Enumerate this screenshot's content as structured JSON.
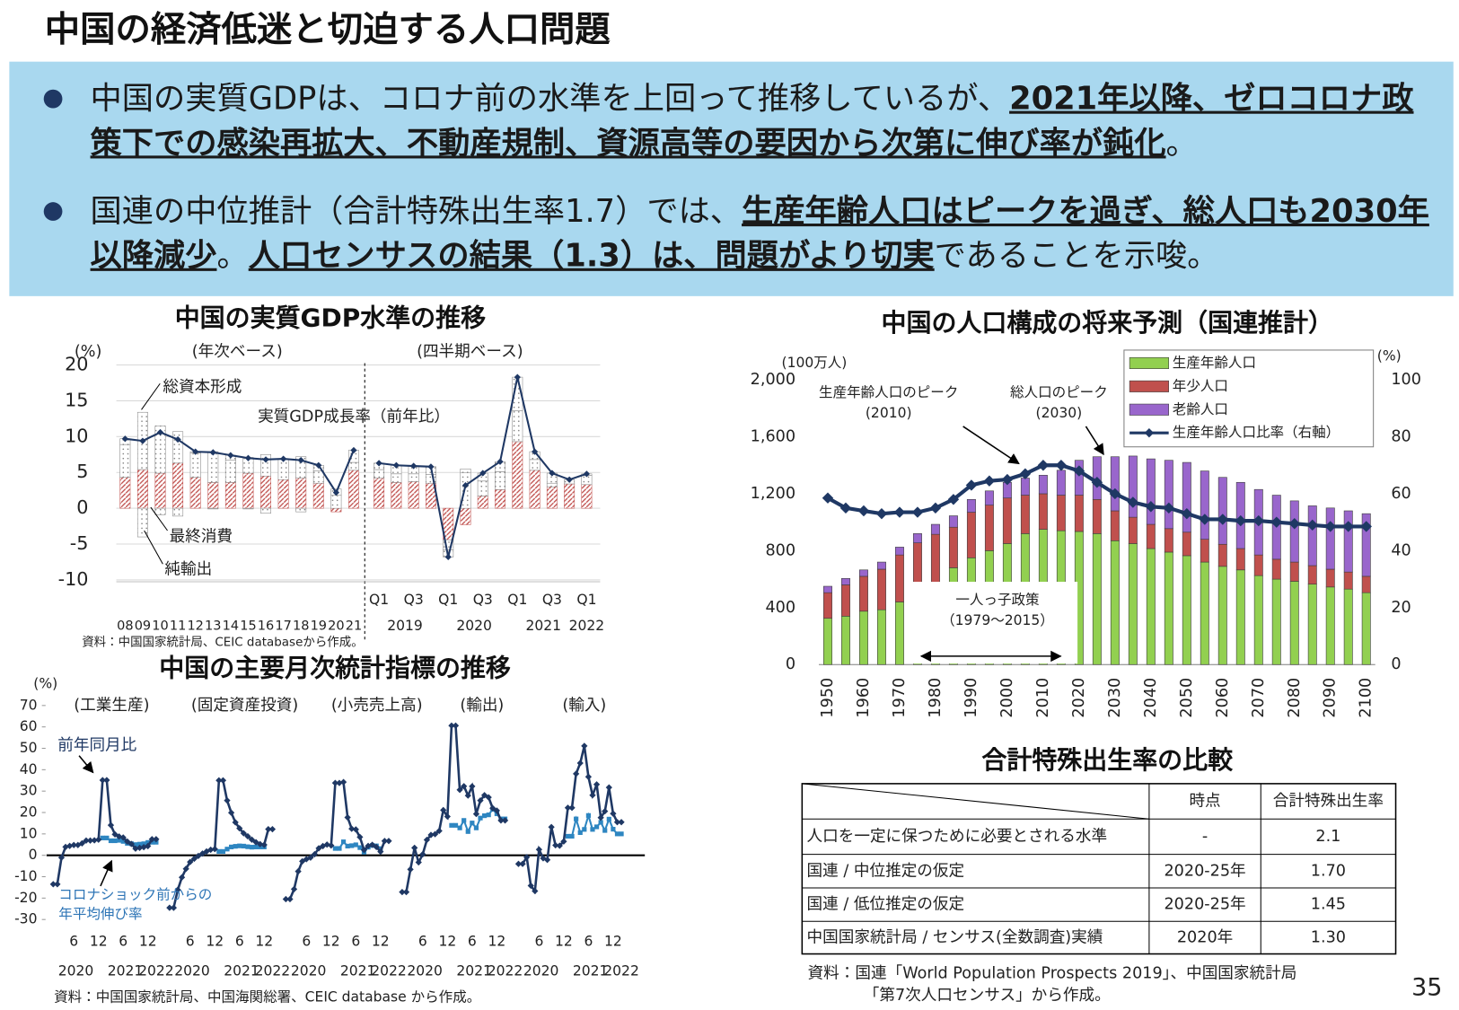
{
  "title": "中国の経済低迷と切迫する人口問題",
  "bullets": [
    {
      "segments": [
        {
          "text": "中国の実質GDPは、コロナ前の水準を上回って推移しているが、",
          "bold": false
        },
        {
          "text": "2021年以降、ゼロコロナ政策下での感染再拡大、不動産規制、資源高等の要因から次第に伸び率が鈍化",
          "bold": true
        },
        {
          "text": "。",
          "bold": false
        }
      ]
    },
    {
      "segments": [
        {
          "text": "国連の中位推計（合計特殊出生率1.7）では、",
          "bold": false
        },
        {
          "text": "生産年齢人口はピークを過ぎ、総人口も2030年以降減少",
          "bold": true
        },
        {
          "text": "。",
          "bold": false
        },
        {
          "text": "人口センサスの結果（1.3）は、問題がより切実",
          "bold": true
        },
        {
          "text": "であることを示唆。",
          "bold": false
        }
      ]
    }
  ],
  "chart_data": [
    {
      "type": "bar",
      "stacked": true,
      "title": "中国の実質GDP水準の推移",
      "y_unit": "(%)",
      "section_labels": [
        "(年次ベース)",
        "(四半期ベース)"
      ],
      "categories": [
        "08",
        "09",
        "10",
        "11",
        "12",
        "13",
        "14",
        "15",
        "16",
        "17",
        "18",
        "19",
        "20",
        "21",
        "Q1",
        null,
        "Q3",
        null,
        "Q1",
        null,
        "Q3",
        null,
        "Q1",
        null,
        "Q3",
        null,
        "Q1"
      ],
      "period_labels": [
        "2019",
        "2020",
        "2021",
        "2022"
      ],
      "series": [
        {
          "name": "最終消費",
          "color": "#c0504d",
          "pattern": "hatch",
          "values": [
            4.3,
            5.4,
            4.9,
            6.3,
            4.3,
            3.6,
            3.6,
            4.9,
            4.5,
            4.0,
            4.2,
            3.5,
            -0.5,
            5.3,
            4.2,
            3.6,
            3.7,
            3.5,
            -4.4,
            -2.3,
            1.7,
            2.6,
            9.3,
            5.3,
            3.0,
            3.4,
            3.3
          ]
        },
        {
          "name": "総資本形成",
          "color": "#7f7f7f",
          "pattern": "dots",
          "values": [
            4.6,
            8.0,
            6.6,
            4.4,
            3.4,
            4.3,
            3.1,
            2.2,
            3.0,
            2.9,
            3.0,
            1.7,
            1.8,
            1.1,
            1.2,
            1.2,
            1.1,
            1.2,
            -1.4,
            5.0,
            2.1,
            2.5,
            4.3,
            1.5,
            0.5,
            0.0,
            1.3
          ]
        },
        {
          "name": "純輸出",
          "color": "#7f7f7f",
          "pattern": "dots",
          "values": [
            0.8,
            -4.0,
            -0.9,
            -1.1,
            0.2,
            -0.1,
            0.7,
            -0.1,
            -0.7,
            0.0,
            -0.5,
            0.8,
            0.9,
            1.7,
            0.9,
            1.2,
            1.1,
            1.1,
            -1.0,
            0.5,
            1.1,
            1.4,
            4.7,
            1.1,
            1.4,
            0.6,
            0.2
          ]
        },
        {
          "name": "実質GDP成長率（前年比）",
          "type": "line",
          "color": "#1f3864",
          "values": [
            9.7,
            9.4,
            10.6,
            9.6,
            7.9,
            7.8,
            7.4,
            7.0,
            6.8,
            6.9,
            6.7,
            6.0,
            2.2,
            8.1,
            6.3,
            6.0,
            5.9,
            5.8,
            -6.8,
            3.2,
            4.9,
            6.5,
            18.3,
            7.9,
            4.9,
            4.0,
            4.8
          ]
        }
      ],
      "ylim": [
        -10,
        20
      ],
      "yticks": [
        -10,
        -5,
        0,
        5,
        10,
        15,
        20
      ],
      "grid": true,
      "source": "資料：中国国家統計局、CEIC databaseから作成。"
    },
    {
      "type": "bar",
      "stacked": true,
      "title": "中国の人口構成の将来予測（国連推計）",
      "y_unit": "(100万人)",
      "y2_unit": "(%)",
      "categories": [
        "1950",
        null,
        "1960",
        null,
        "1970",
        null,
        "1980",
        null,
        "1990",
        null,
        "2000",
        null,
        "2010",
        null,
        "2020",
        null,
        "2030",
        null,
        "2040",
        null,
        "2050",
        null,
        "2060",
        null,
        "2070",
        null,
        "2080",
        null,
        "2090",
        null,
        "2100"
      ],
      "series": [
        {
          "name": "生産年齢人口",
          "color": "#92d050",
          "values": [
            325,
            340,
            375,
            385,
            440,
            500,
            575,
            680,
            750,
            800,
            850,
            920,
            950,
            940,
            935,
            920,
            870,
            850,
            815,
            790,
            765,
            720,
            690,
            665,
            625,
            600,
            585,
            565,
            545,
            530,
            505
          ]
        },
        {
          "name": "年少人口",
          "color": "#c0504d",
          "values": [
            180,
            220,
            245,
            285,
            330,
            355,
            340,
            285,
            320,
            320,
            320,
            270,
            250,
            250,
            255,
            240,
            210,
            185,
            170,
            165,
            165,
            160,
            155,
            150,
            145,
            140,
            135,
            130,
            125,
            120,
            115
          ]
        },
        {
          "name": "老齢人口",
          "color": "#9966cc",
          "values": [
            45,
            45,
            45,
            50,
            55,
            65,
            70,
            80,
            90,
            100,
            110,
            120,
            130,
            175,
            245,
            300,
            380,
            430,
            460,
            480,
            490,
            480,
            470,
            465,
            460,
            450,
            430,
            420,
            430,
            430,
            440
          ]
        },
        {
          "name": "生産年齢人口比率（右軸）",
          "type": "line",
          "axis": "y2",
          "color": "#1f3864",
          "values": [
            58.5,
            55,
            54,
            53,
            53.5,
            53.5,
            55,
            58,
            63,
            64.5,
            65,
            67,
            70,
            70,
            68,
            64,
            60,
            57,
            55.5,
            55,
            53,
            51,
            51,
            50.5,
            50.5,
            50,
            49.5,
            49,
            48.5,
            48.5,
            48.5
          ]
        }
      ],
      "ylim": [
        0,
        2000
      ],
      "yticks": [
        0,
        400,
        800,
        {
          "value": 1200,
          "label": "1,200"
        },
        {
          "value": 1600,
          "label": "1,600"
        },
        {
          "value": 2000,
          "label": "2,000"
        }
      ],
      "y2lim": [
        0,
        100
      ],
      "y2ticks": [
        0,
        20,
        40,
        60,
        80,
        100
      ],
      "legend": "upper right",
      "grid": false,
      "annotations": [
        [
          "生産年齢人口のピーク",
          "(2010)"
        ],
        [
          "総人口のピーク",
          "(2030)"
        ],
        [
          "一人っ子政策",
          "（1979～2015）"
        ]
      ]
    },
    {
      "type": "line",
      "title": "中国の主要月次統計指標の推移",
      "y_unit": "(%)",
      "categories": [
        null,
        null,
        null,
        null,
        null,
        "6",
        null,
        null,
        null,
        null,
        null,
        "12",
        null,
        null,
        null,
        null,
        null,
        "6",
        null,
        null,
        null,
        null,
        null,
        "12",
        null,
        null
      ],
      "year_labels": [
        "2020",
        "2021",
        "2022"
      ],
      "series": [
        {
          "name": "前年同月比",
          "color": "#1f3864"
        },
        {
          "name": "コロナショック前からの年平均伸び率",
          "color": "#2e86c1"
        }
      ],
      "panels": [
        {
          "label": "(工業生産)",
          "values": [
            [
              -13.5,
              -13.5,
              -1.1,
              3.9,
              4.4,
              4.8,
              4.8,
              5.6,
              6.9,
              6.9,
              7.0,
              7.3,
              35.1,
              35.1,
              14.1,
              9.8,
              8.8,
              8.3,
              6.4,
              5.3,
              3.1,
              3.5,
              3.8,
              4.3,
              7.5,
              7.5
            ],
            [
              null,
              null,
              null,
              null,
              null,
              null,
              null,
              null,
              null,
              null,
              null,
              null,
              8.1,
              8.1,
              6.8,
              6.8,
              7.0,
              6.5,
              5.6,
              5.4,
              5.0,
              5.2,
              5.4,
              6.0,
              6.1,
              6.1
            ]
          ]
        },
        {
          "label": "(固定資産投資)",
          "values": [
            [
              -24.5,
              -24.5,
              -16.1,
              -10.3,
              -6.3,
              -3.1,
              -1.6,
              -0.3,
              0.8,
              1.8,
              2.6,
              2.9,
              35.0,
              35.0,
              25.6,
              19.9,
              15.4,
              12.6,
              10.3,
              8.9,
              7.3,
              6.1,
              5.2,
              4.9,
              12.2,
              12.2
            ],
            [
              null,
              null,
              null,
              null,
              null,
              null,
              null,
              null,
              null,
              null,
              null,
              null,
              1.8,
              1.8,
              2.9,
              3.9,
              4.2,
              4.4,
              4.3,
              4.0,
              3.8,
              3.9,
              3.9,
              3.9,
              null,
              null
            ]
          ]
        },
        {
          "label": "(小売売上高)",
          "values": [
            [
              -20.5,
              -20.5,
              -15.8,
              -7.5,
              -2.8,
              -1.8,
              -1.1,
              0.5,
              3.3,
              4.3,
              5.0,
              4.6,
              33.8,
              33.8,
              34.2,
              17.7,
              12.4,
              12.1,
              8.5,
              2.5,
              4.4,
              4.9,
              3.9,
              1.7,
              6.7,
              6.7
            ],
            [
              null,
              null,
              null,
              null,
              null,
              null,
              null,
              null,
              null,
              null,
              null,
              null,
              3.2,
              3.2,
              6.3,
              4.3,
              4.5,
              4.9,
              3.6,
              1.5,
              3.8,
              4.6,
              4.4,
              3.1,
              null,
              null
            ]
          ]
        },
        {
          "label": "(輸出)",
          "values": [
            [
              -17.2,
              -17.2,
              -6.6,
              3.5,
              -3.3,
              0.5,
              7.2,
              9.5,
              9.9,
              11.4,
              21.1,
              18.1,
              60.6,
              60.6,
              30.6,
              32.3,
              27.9,
              32.2,
              19.3,
              25.6,
              28.1,
              27.1,
              22.0,
              20.9,
              16.3,
              16.3
            ],
            [
              null,
              null,
              null,
              null,
              null,
              null,
              null,
              null,
              null,
              null,
              null,
              null,
              14.0,
              14.0,
              12.8,
              16.3,
              11.1,
              15.1,
              12.8,
              17.4,
              18.5,
              18.9,
              21.5,
              19.4,
              17.0,
              17.0
            ]
          ]
        },
        {
          "label": "(輸入)",
          "values": [
            [
              -4.0,
              -4.0,
              -0.9,
              -14.2,
              -16.7,
              2.7,
              -1.4,
              -2.1,
              13.2,
              4.7,
              4.5,
              6.5,
              22.2,
              22.2,
              38.1,
              43.1,
              51.1,
              36.7,
              28.1,
              33.1,
              17.6,
              20.6,
              31.7,
              19.5,
              15.5,
              15.5
            ],
            [
              null,
              null,
              null,
              null,
              null,
              null,
              null,
              null,
              null,
              null,
              null,
              null,
              8.9,
              8.9,
              17.0,
              10.6,
              12.1,
              18.6,
              12.1,
              13.3,
              15.4,
              11.6,
              16.9,
              12.2,
              10.0,
              10.0
            ]
          ]
        }
      ],
      "ylim": [
        -30,
        70
      ],
      "yticks": [
        -30,
        -20,
        -10,
        0,
        10,
        20,
        30,
        40,
        50,
        60,
        70
      ],
      "source": "資料：中国国家統計局、中国海関総署、CEIC database から作成。"
    }
  ],
  "table": {
    "title": "合計特殊出生率の比較",
    "header": [
      "時点",
      "合計特殊出生率"
    ],
    "rows": [
      [
        "人口を一定に保つために必要とされる水準",
        "-",
        "2.1"
      ],
      [
        "国連 / 中位推定の仮定",
        "2020-25年",
        "1.70"
      ],
      [
        "国連 / 低位推定の仮定",
        "2020-25年",
        "1.45"
      ],
      [
        "中国国家統計局 / センサス(全数調査)実績",
        "2020年",
        "1.30"
      ]
    ],
    "source": [
      "資料：国連「World Population Prospects 2019」、中国国家統計局",
      "「第7次人口センサス」から作成。"
    ]
  },
  "page_number": "35"
}
